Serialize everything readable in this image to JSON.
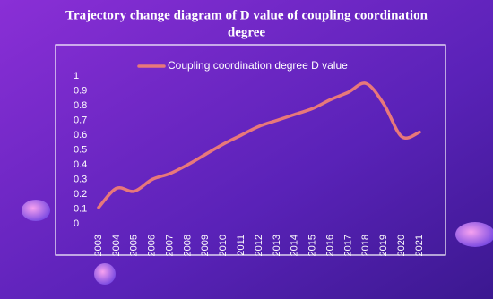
{
  "chart_data": {
    "type": "line",
    "title": [
      "Trajectory change diagram of D value of coupling coordination",
      "degree"
    ],
    "categories": [
      "2003",
      "2004",
      "2005",
      "2006",
      "2007",
      "2008",
      "2009",
      "2010",
      "2011",
      "2012",
      "2013",
      "2014",
      "2015",
      "2016",
      "2017",
      "2018",
      "2019",
      "2020",
      "2021"
    ],
    "series": [
      {
        "name": "Coupling coordination degree D value",
        "color": "#e8787a",
        "values": [
          0.11,
          0.24,
          0.22,
          0.3,
          0.34,
          0.4,
          0.47,
          0.54,
          0.6,
          0.66,
          0.7,
          0.74,
          0.78,
          0.84,
          0.89,
          0.95,
          0.81,
          0.59,
          0.62
        ]
      }
    ],
    "ylim": [
      0,
      1
    ],
    "yticks": [
      0,
      0.1,
      0.2,
      0.3,
      0.4,
      0.5,
      0.6,
      0.7,
      0.8,
      0.9,
      1
    ],
    "legend": "top",
    "grid": false
  }
}
